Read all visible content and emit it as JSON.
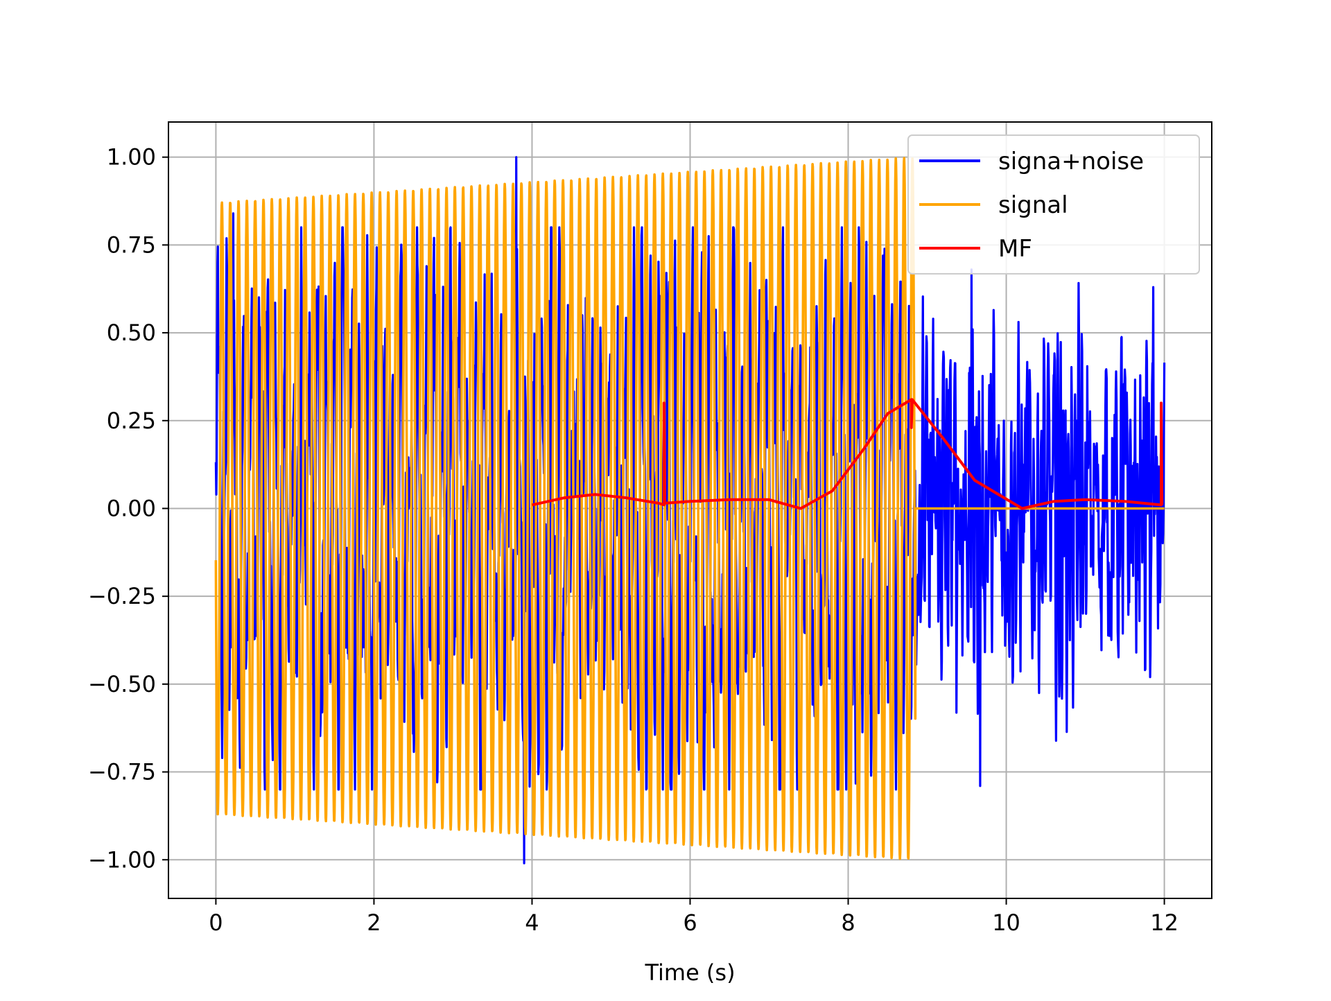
{
  "chart_data": {
    "type": "line",
    "title": "",
    "xlabel": "Time (s)",
    "ylabel": "",
    "xlim": [
      -0.6,
      12.6
    ],
    "ylim": [
      -1.11,
      1.1
    ],
    "grid": true,
    "x_ticks": [
      0,
      2,
      4,
      6,
      8,
      10,
      12
    ],
    "x_tick_labels": [
      "0",
      "2",
      "4",
      "6",
      "8",
      "10",
      "12"
    ],
    "y_ticks": [
      1.0,
      0.75,
      0.5,
      0.25,
      0.0,
      -0.25,
      -0.5,
      -0.75,
      -1.0
    ],
    "y_tick_labels": [
      "1.00",
      "0.75",
      "0.50",
      "0.25",
      "0.00",
      "−0.25",
      "−0.50",
      "−0.75",
      "−1.00"
    ],
    "legend_position": "top-right",
    "series": [
      {
        "name": "signa+noise",
        "color": "#0000ff",
        "description": "noisy received signal over 0-12 s",
        "t_start": 0.0,
        "t_end": 12.0,
        "peaks": [
          {
            "t": 3.8,
            "v": 1.0
          },
          {
            "t": 3.9,
            "v": -1.01
          },
          {
            "t": 9.67,
            "v": -0.79
          },
          {
            "t": 0.22,
            "v": 0.84
          },
          {
            "t": 0.27,
            "v": -0.54
          },
          {
            "t": 9.56,
            "v": 0.68
          },
          {
            "t": 11.86,
            "v": 0.63
          },
          {
            "t": 11.82,
            "v": -0.48
          }
        ]
      },
      {
        "name": "signal",
        "color": "#ffa500",
        "description": "sinusoid about 9.5 Hz, amplitude 0.87 rising to 1.00, then zero",
        "t_start": 0.0,
        "t_end": 8.85,
        "amplitude_start": 0.87,
        "amplitude_end": 1.0,
        "frequency_hz": 9.5,
        "zero_after": 8.85,
        "zero_until": 12.0
      },
      {
        "name": "MF",
        "color": "#ff0000",
        "description": "matched filter output envelope",
        "x": [
          4.0,
          4.4,
          4.8,
          5.2,
          5.6,
          5.67,
          5.67,
          5.68,
          6.0,
          6.5,
          7.0,
          7.4,
          7.8,
          8.2,
          8.5,
          8.8,
          8.8,
          8.81,
          9.2,
          9.6,
          10.2,
          10.6,
          11.0,
          11.5,
          11.96,
          11.96,
          11.97
        ],
        "y": [
          0.01,
          0.03,
          0.04,
          0.03,
          0.015,
          0.01,
          0.3,
          0.015,
          0.02,
          0.025,
          0.025,
          0.0,
          0.05,
          0.17,
          0.27,
          0.31,
          0.23,
          0.31,
          0.2,
          0.08,
          0.0,
          0.02,
          0.025,
          0.02,
          0.01,
          0.3,
          0.01
        ]
      }
    ]
  }
}
